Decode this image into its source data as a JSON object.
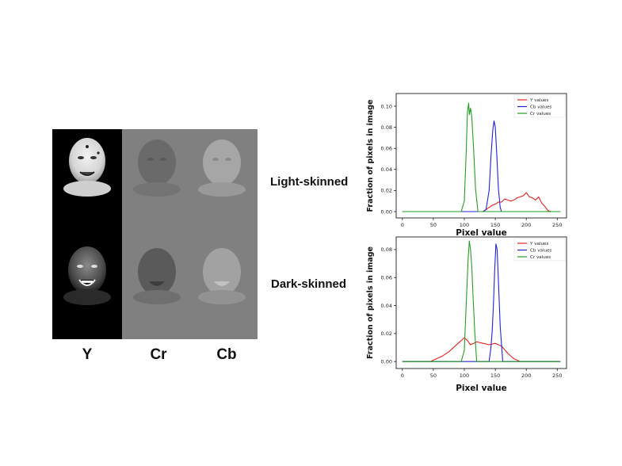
{
  "channels": {
    "y_label": "Y",
    "cr_label": "Cr",
    "cb_label": "Cb"
  },
  "rows": {
    "light_label": "Light-skinned",
    "dark_label": "Dark-skinned"
  },
  "colors": {
    "y_series": "#e8221e",
    "cb_series": "#2222dd",
    "cr_series": "#22a022",
    "gray_panel": "#808080",
    "black_panel": "#000000"
  },
  "chart_data": [
    {
      "type": "line",
      "xlabel": "Pixel value",
      "ylabel": "Fraction of pixels in image",
      "xlim": [
        -10,
        265
      ],
      "ylim": [
        -0.006,
        0.112
      ],
      "xticks": [
        0,
        50,
        100,
        150,
        200,
        250
      ],
      "yticks": [
        0.0,
        0.02,
        0.04,
        0.06,
        0.08,
        0.1
      ],
      "ytick_labels": [
        "0.00",
        "0.02",
        "0.04",
        "0.06",
        "0.08",
        "0.10"
      ],
      "grid": false,
      "legend": "top-right",
      "series": [
        {
          "name": "Y values",
          "color": "#e8221e",
          "x": [
            0,
            100,
            130,
            135,
            140,
            145,
            150,
            155,
            160,
            165,
            170,
            175,
            180,
            185,
            190,
            195,
            200,
            205,
            210,
            215,
            220,
            225,
            230,
            235,
            240,
            255
          ],
          "y": [
            0,
            0,
            0,
            0.002,
            0.004,
            0.006,
            0.007,
            0.009,
            0.009,
            0.012,
            0.011,
            0.01,
            0.011,
            0.013,
            0.014,
            0.015,
            0.018,
            0.014,
            0.013,
            0.011,
            0.014,
            0.008,
            0.005,
            0.001,
            0,
            0
          ]
        },
        {
          "name": "Cb values",
          "color": "#2222dd",
          "x": [
            0,
            130,
            135,
            140,
            143,
            146,
            148,
            150,
            152,
            155,
            158,
            160,
            255
          ],
          "y": [
            0,
            0,
            0.002,
            0.02,
            0.052,
            0.078,
            0.086,
            0.08,
            0.058,
            0.022,
            0.004,
            0,
            0
          ]
        },
        {
          "name": "Cr values",
          "color": "#22a022",
          "x": [
            0,
            95,
            100,
            103,
            105,
            107,
            108,
            110,
            112,
            115,
            118,
            122,
            255
          ],
          "y": [
            0,
            0,
            0.01,
            0.055,
            0.094,
            0.103,
            0.092,
            0.098,
            0.09,
            0.06,
            0.022,
            0,
            0
          ]
        }
      ]
    },
    {
      "type": "line",
      "xlabel": "Pixel value",
      "ylabel": "Fraction of pixels in image",
      "xlim": [
        -10,
        265
      ],
      "ylim": [
        -0.005,
        0.089
      ],
      "xticks": [
        0,
        50,
        100,
        150,
        200,
        250
      ],
      "yticks": [
        0.0,
        0.02,
        0.04,
        0.06,
        0.08
      ],
      "ytick_labels": [
        "0.00",
        "0.02",
        "0.04",
        "0.06",
        "0.08"
      ],
      "grid": false,
      "legend": "top-right",
      "series": [
        {
          "name": "Y values",
          "color": "#e8221e",
          "x": [
            0,
            45,
            55,
            65,
            75,
            85,
            95,
            100,
            105,
            110,
            115,
            120,
            130,
            140,
            150,
            160,
            170,
            180,
            185,
            190,
            255
          ],
          "y": [
            0,
            0,
            0.002,
            0.004,
            0.007,
            0.011,
            0.015,
            0.017,
            0.015,
            0.012,
            0.013,
            0.014,
            0.013,
            0.012,
            0.013,
            0.011,
            0.006,
            0.002,
            0.001,
            0,
            0
          ]
        },
        {
          "name": "Cb values",
          "color": "#2222dd",
          "x": [
            0,
            140,
            143,
            145,
            147,
            149,
            151,
            153,
            155,
            158,
            162,
            255
          ],
          "y": [
            0,
            0,
            0.01,
            0.022,
            0.04,
            0.065,
            0.084,
            0.08,
            0.058,
            0.025,
            0,
            0
          ]
        },
        {
          "name": "Cr values",
          "color": "#22a022",
          "x": [
            0,
            95,
            100,
            103,
            106,
            108,
            110,
            112,
            114,
            117,
            120,
            255
          ],
          "y": [
            0,
            0,
            0.008,
            0.04,
            0.072,
            0.086,
            0.08,
            0.068,
            0.048,
            0.02,
            0,
            0
          ]
        }
      ]
    }
  ]
}
